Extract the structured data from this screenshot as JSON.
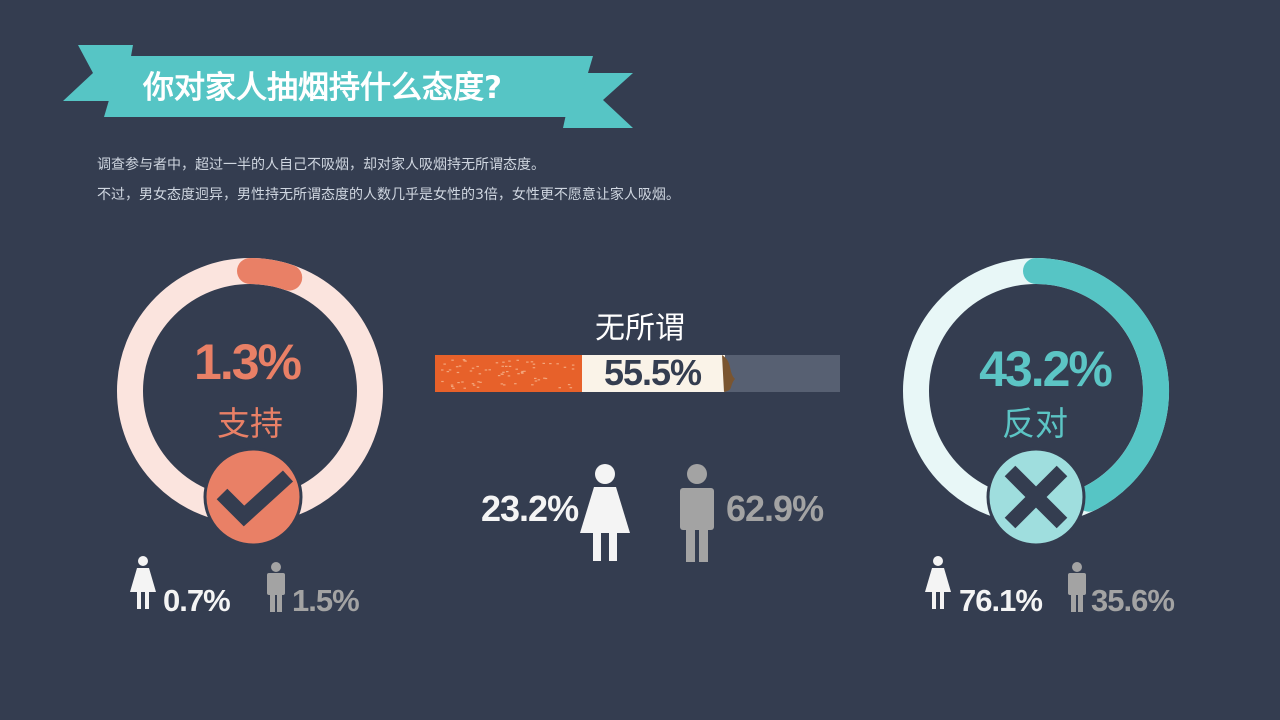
{
  "header": {
    "title": "你对家人抽烟持什么态度?",
    "intro_line_1": "调查参与者中，超过一半的人自己不吸烟，却对家人吸烟持无所谓态度。",
    "intro_line_2": "不过，男女态度迥异，男性持无所谓态度的人数几乎是女性的3倍，女性更不愿意让家人吸烟。"
  },
  "colors": {
    "background": "#343d50",
    "ribbon": "#56c5c5",
    "support": "#e98066",
    "support_light": "#fbe4de",
    "oppose": "#56c5c5",
    "oppose_light": "#e8f7f7",
    "female_icon": "#f4f4f4",
    "male_icon": "#a3a3a3"
  },
  "icons": {
    "support": "check-icon",
    "oppose": "cross-icon",
    "female": "female-person-icon",
    "male": "male-person-icon",
    "middle": "cigarette-icon"
  },
  "chart_data": {
    "type": "donut",
    "unit": "%",
    "categories": [
      {
        "key": "support",
        "label": "支持",
        "value_text": "1.3%",
        "value": 1.3,
        "female_text": "0.7%",
        "female": 0.7,
        "male_text": "1.5%",
        "male": 1.5
      },
      {
        "key": "indifferent",
        "label": "无所谓",
        "value_text": "55.5%",
        "value": 55.5,
        "female_text": "23.2%",
        "female": 23.2,
        "male_text": "62.9%",
        "male": 62.9
      },
      {
        "key": "oppose",
        "label": "反对",
        "value_text": "43.2%",
        "value": 43.2,
        "female_text": "76.1%",
        "female": 76.1,
        "male_text": "35.6%",
        "male": 35.6
      }
    ]
  }
}
